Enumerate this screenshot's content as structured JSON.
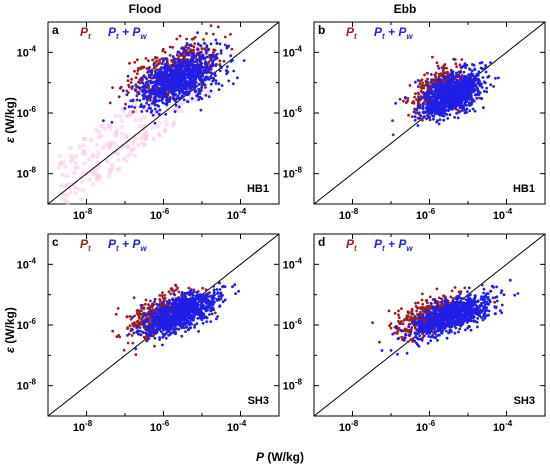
{
  "figure": {
    "columns": [
      "Flood",
      "Ebb"
    ],
    "x_axis_label": {
      "symbol": "P",
      "unit": " (W/kg)"
    },
    "y_axis_label": {
      "symbol": "ε",
      "unit": " (W/kg)"
    },
    "x_ticks": [
      "10-8",
      "10-6",
      "10-4"
    ],
    "y_ticks": [
      "10-8",
      "10-6",
      "10-4"
    ],
    "legend": {
      "series_a": {
        "text": "P",
        "sub": "t"
      },
      "series_b": {
        "text": "P",
        "sub": "t",
        "plus": " + ",
        "text2": "P",
        "sub2": "w"
      }
    }
  },
  "colors": {
    "pt": "#9c1f1f",
    "pt_pw": "#1f1fe8",
    "one_to_one": "#000000",
    "highlight": "#f7c6e6"
  },
  "chart_data": [
    {
      "type": "scatter",
      "panel": "a",
      "column": "Flood",
      "station": "HB1",
      "xscale": "log",
      "yscale": "log",
      "xlim": [
        1e-09,
        0.001
      ],
      "ylim": [
        1e-09,
        0.001
      ],
      "reference_line": "1:1",
      "series": [
        {
          "name": "Pt",
          "color": "#9c1f1f",
          "cloud": {
            "x_range": [
              1e-07,
              3e-05
            ],
            "y_center_log": -4.6,
            "spread_log": 0.7
          }
        },
        {
          "name": "Pt + Pw",
          "color": "#1f1fe8",
          "cloud": {
            "x_range": [
              2e-07,
              3e-05
            ],
            "y_center_log": -4.9,
            "spread_log": 0.7
          }
        }
      ]
    },
    {
      "type": "scatter",
      "panel": "b",
      "column": "Ebb",
      "station": "HB1",
      "xscale": "log",
      "yscale": "log",
      "xlim": [
        1e-09,
        0.001
      ],
      "ylim": [
        1e-09,
        0.001
      ],
      "reference_line": "1:1",
      "series": [
        {
          "name": "Pt",
          "color": "#9c1f1f",
          "cloud": {
            "x_range": [
              3e-07,
              1e-05
            ],
            "y_center_log": -5.3,
            "spread_log": 0.6
          }
        },
        {
          "name": "Pt + Pw",
          "color": "#1f1fe8",
          "cloud": {
            "x_range": [
              5e-07,
              3e-05
            ],
            "y_center_log": -5.4,
            "spread_log": 0.6
          }
        }
      ]
    },
    {
      "type": "scatter",
      "panel": "c",
      "column": "Flood",
      "station": "SH3",
      "xscale": "log",
      "yscale": "log",
      "xlim": [
        1e-09,
        0.001
      ],
      "ylim": [
        1e-09,
        0.001
      ],
      "reference_line": "1:1",
      "series": [
        {
          "name": "Pt",
          "color": "#9c1f1f",
          "cloud": {
            "x_range": [
              1e-07,
              1e-05
            ],
            "y_center_log": -5.6,
            "spread_log": 0.55
          }
        },
        {
          "name": "Pt + Pw",
          "color": "#1f1fe8",
          "cloud": {
            "x_range": [
              3e-07,
              3e-05
            ],
            "y_center_log": -5.6,
            "spread_log": 0.5
          }
        }
      ]
    },
    {
      "type": "scatter",
      "panel": "d",
      "column": "Ebb",
      "station": "SH3",
      "xscale": "log",
      "yscale": "log",
      "xlim": [
        1e-09,
        0.001
      ],
      "ylim": [
        1e-09,
        0.001
      ],
      "reference_line": "1:1",
      "series": [
        {
          "name": "Pt",
          "color": "#9c1f1f",
          "cloud": {
            "x_range": [
              1e-07,
              1e-05
            ],
            "y_center_log": -5.7,
            "spread_log": 0.5
          }
        },
        {
          "name": "Pt + Pw",
          "color": "#1f1fe8",
          "cloud": {
            "x_range": [
              3e-07,
              5e-05
            ],
            "y_center_log": -5.7,
            "spread_log": 0.45
          }
        }
      ]
    }
  ]
}
